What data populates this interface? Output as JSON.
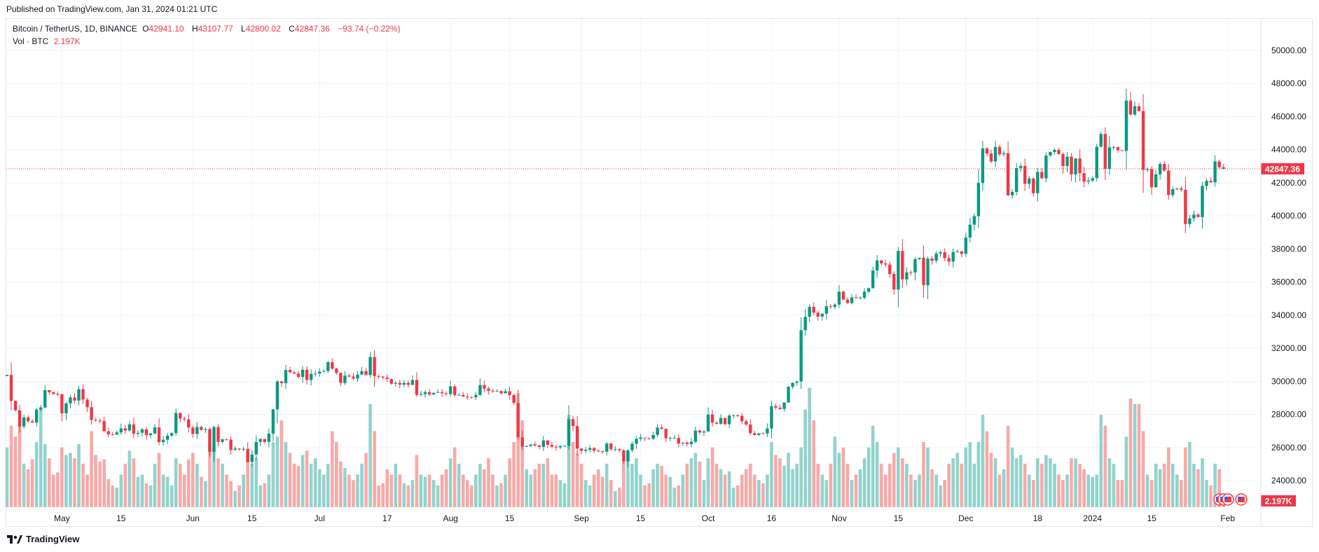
{
  "published": "Published on TradingView.com, Jan 31, 2024 01:21 UTC",
  "legend": {
    "symbol": "Bitcoin / TetherUS, 1D, BINANCE",
    "o_label": "O",
    "o": "42941.10",
    "h_label": "H",
    "h": "43107.77",
    "l_label": "L",
    "l": "42800.02",
    "c_label": "C",
    "c": "42847.36",
    "change": "−93.74 (−0.22%)",
    "vol_label": "Vol · BTC",
    "vol": "2.197K"
  },
  "footer": {
    "brand": "TradingView"
  },
  "colors": {
    "up": "#089981",
    "down": "#f23645",
    "vol_up": "#92d2cc",
    "vol_down": "#f7a9a7",
    "grid": "#f0f3fa"
  },
  "chart_data": {
    "type": "candlestick",
    "title": "Bitcoin / TetherUS, 1D, BINANCE",
    "start_date": "2023-04-18",
    "interval": "1D",
    "ylim": [
      22800,
      50800
    ],
    "y_ticks": [
      "50000.00",
      "48000.00",
      "46000.00",
      "44000.00",
      "42000.00",
      "40000.00",
      "38000.00",
      "36000.00",
      "34000.00",
      "32000.00",
      "30000.00",
      "28000.00",
      "26000.00",
      "24000.00"
    ],
    "x_ticks": [
      {
        "label": "May",
        "day": 13
      },
      {
        "label": "15",
        "day": 27
      },
      {
        "label": "Jun",
        "day": 44
      },
      {
        "label": "15",
        "day": 58
      },
      {
        "label": "Jul",
        "day": 74
      },
      {
        "label": "17",
        "day": 90
      },
      {
        "label": "Aug",
        "day": 105
      },
      {
        "label": "15",
        "day": 119
      },
      {
        "label": "Sep",
        "day": 136
      },
      {
        "label": "15",
        "day": 150
      },
      {
        "label": "Oct",
        "day": 166
      },
      {
        "label": "16",
        "day": 181
      },
      {
        "label": "Nov",
        "day": 197
      },
      {
        "label": "15",
        "day": 211
      },
      {
        "label": "Dec",
        "day": 227
      },
      {
        "label": "18",
        "day": 244
      },
      {
        "label": "2024",
        "day": 257
      },
      {
        "label": "15",
        "day": 271
      },
      {
        "label": "Feb",
        "day": 289
      }
    ],
    "last_price": "42847.36",
    "last_volume": "2.197K",
    "first_open": 30320,
    "last_candle": {
      "open": 42941.1,
      "high": 43107.77,
      "low": 42800.02,
      "close": 42847.36
    },
    "close": [
      30390,
      28820,
      28250,
      27270,
      27820,
      27590,
      27510,
      28300,
      28420,
      29470,
      29340,
      29240,
      29230,
      28070,
      28670,
      29030,
      28840,
      29530,
      28900,
      28440,
      27670,
      27630,
      27600,
      26980,
      26800,
      26780,
      26920,
      27160,
      27030,
      27400,
      26830,
      26890,
      27100,
      26750,
      26850,
      27220,
      26330,
      26470,
      26720,
      26870,
      28090,
      27750,
      27700,
      27210,
      26820,
      27250,
      27070,
      27120,
      25740,
      27240,
      26340,
      26500,
      26480,
      25850,
      25940,
      25900,
      25920,
      25120,
      25580,
      26340,
      26510,
      26340,
      26840,
      28310,
      30000,
      29890,
      30690,
      30540,
      30470,
      30270,
      30700,
      30080,
      30450,
      30470,
      30590,
      30620,
      31160,
      30770,
      30510,
      29900,
      30350,
      30290,
      30170,
      30410,
      30620,
      30380,
      31470,
      30320,
      30290,
      30230,
      30140,
      29860,
      29910,
      29800,
      29910,
      29790,
      30080,
      29180,
      29230,
      29350,
      29210,
      29310,
      29350,
      29280,
      29230,
      29700,
      29170,
      29180,
      29080,
      29050,
      29040,
      29180,
      29770,
      29560,
      29430,
      29400,
      29420,
      29280,
      29400,
      29170,
      28700,
      26620,
      26050,
      26100,
      26190,
      26120,
      26040,
      26430,
      26160,
      26050,
      26010,
      26090,
      26100,
      27720,
      27300,
      25940,
      25800,
      25870,
      25970,
      25810,
      25780,
      25750,
      26240,
      25900,
      25900,
      25830,
      25160,
      25840,
      26230,
      26530,
      26610,
      26570,
      26530,
      26760,
      27210,
      27130,
      26570,
      26580,
      26580,
      26250,
      26300,
      26210,
      26350,
      27030,
      26910,
      26970,
      27990,
      27500,
      27430,
      27790,
      27410,
      27930,
      27950,
      27920,
      27590,
      27390,
      26870,
      26760,
      26860,
      26850,
      27150,
      28500,
      28410,
      28330,
      28720,
      29670,
      29910,
      29990,
      33090,
      33900,
      34500,
      34150,
      33910,
      34090,
      34540,
      34500,
      34640,
      35420,
      34940,
      34730,
      35080,
      35040,
      35050,
      35420,
      35630,
      36700,
      37310,
      37130,
      37060,
      36490,
      35550,
      37880,
      36160,
      36590,
      36580,
      37390,
      37470,
      35810,
      37420,
      37290,
      37720,
      37800,
      37450,
      37240,
      37820,
      37860,
      37710,
      38690,
      39470,
      39980,
      41990,
      44080,
      43770,
      43290,
      44170,
      43720,
      43790,
      41240,
      41450,
      42890,
      43020,
      41940,
      42260,
      41370,
      42660,
      42270,
      43650,
      43860,
      43990,
      43740,
      43010,
      43580,
      42510,
      43470,
      42580,
      42070,
      42140,
      42280,
      44180,
      44950,
      42850,
      44150,
      44160,
      43970,
      43930,
      46970,
      46120,
      46630,
      46340,
      42780,
      42840,
      41730,
      42510,
      43140,
      42740,
      41260,
      41620,
      41660,
      41580,
      39510,
      39850,
      40080,
      39930,
      41810,
      42120,
      42030,
      43290,
      42941.1,
      42847.36
    ],
    "volume_k": [
      55,
      75,
      65,
      78,
      40,
      35,
      44,
      60,
      92,
      58,
      45,
      30,
      32,
      55,
      48,
      50,
      45,
      58,
      40,
      30,
      70,
      48,
      42,
      44,
      26,
      20,
      18,
      30,
      40,
      52,
      45,
      28,
      30,
      22,
      20,
      40,
      50,
      30,
      28,
      20,
      45,
      40,
      30,
      44,
      50,
      40,
      28,
      24,
      60,
      55,
      45,
      40,
      30,
      24,
      15,
      20,
      30,
      50,
      40,
      45,
      20,
      22,
      30,
      60,
      65,
      80,
      60,
      50,
      40,
      38,
      48,
      52,
      40,
      45,
      35,
      30,
      40,
      70,
      60,
      42,
      36,
      30,
      25,
      30,
      40,
      50,
      95,
      70,
      20,
      22,
      35,
      30,
      40,
      30,
      22,
      20,
      25,
      48,
      30,
      28,
      30,
      25,
      20,
      30,
      35,
      45,
      55,
      40,
      30,
      25,
      20,
      30,
      40,
      35,
      45,
      30,
      20,
      22,
      30,
      45,
      60,
      105,
      80,
      35,
      30,
      35,
      40,
      40,
      45,
      30,
      30,
      25,
      22,
      85,
      60,
      50,
      40,
      25,
      20,
      30,
      35,
      28,
      40,
      25,
      15,
      18,
      45,
      50,
      40,
      45,
      30,
      20,
      22,
      35,
      40,
      38,
      30,
      28,
      18,
      20,
      30,
      40,
      45,
      50,
      42,
      25,
      45,
      55,
      40,
      35,
      30,
      33,
      18,
      20,
      30,
      35,
      40,
      30,
      25,
      22,
      30,
      60,
      48,
      45,
      38,
      50,
      35,
      40,
      55,
      90,
      110,
      80,
      40,
      30,
      25,
      40,
      65,
      50,
      55,
      40,
      25,
      30,
      35,
      45,
      55,
      75,
      60,
      40,
      30,
      40,
      50,
      55,
      45,
      40,
      30,
      25,
      30,
      60,
      55,
      35,
      30,
      20,
      25,
      40,
      45,
      50,
      40,
      55,
      60,
      40,
      60,
      85,
      70,
      50,
      45,
      30,
      35,
      75,
      55,
      45,
      48,
      40,
      30,
      25,
      45,
      40,
      48,
      45,
      40,
      30,
      25,
      30,
      45,
      45,
      40,
      35,
      30,
      28,
      30,
      85,
      75,
      45,
      40,
      25,
      25,
      65,
      100,
      95,
      95,
      70,
      30,
      25,
      40,
      35,
      40,
      55,
      40,
      30,
      25,
      55,
      60,
      40,
      35,
      45,
      25,
      20,
      40,
      35,
      2.197
    ]
  }
}
